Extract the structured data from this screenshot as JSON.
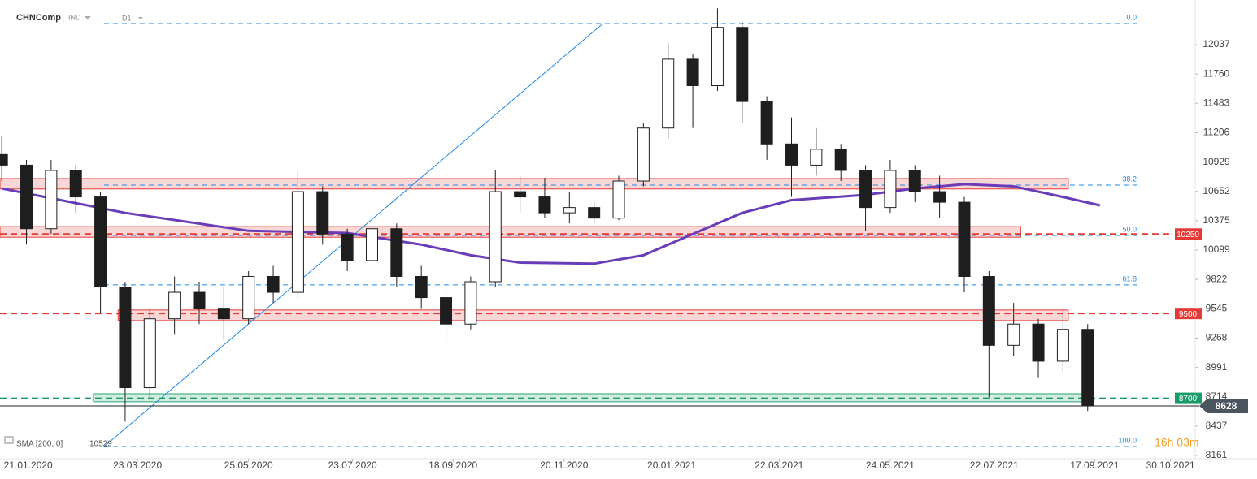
{
  "header": {
    "symbol": "CHNComp",
    "market": "IND",
    "interval": "D1"
  },
  "chart_data": {
    "type": "candlestick",
    "x": [
      "06.01.2020",
      "20.01.2020",
      "03.02.2020",
      "17.02.2020",
      "02.03.2020",
      "16.03.2020",
      "30.03.2020",
      "13.04.2020",
      "27.04.2020",
      "11.05.2020",
      "25.05.2020",
      "08.06.2020",
      "22.06.2020",
      "06.07.2020",
      "20.07.2020",
      "03.08.2020",
      "17.08.2020",
      "31.08.2020",
      "14.09.2020",
      "28.09.2020",
      "12.10.2020",
      "26.10.2020",
      "09.11.2020",
      "23.11.2020",
      "07.12.2020",
      "21.12.2020",
      "04.01.2021",
      "18.01.2021",
      "01.02.2021",
      "15.02.2021",
      "01.03.2021",
      "15.03.2021",
      "29.03.2021",
      "12.04.2021",
      "26.04.2021",
      "10.05.2021",
      "24.05.2021",
      "07.06.2021",
      "21.06.2021",
      "05.07.2021",
      "19.07.2021",
      "02.08.2021",
      "16.08.2021",
      "30.08.2021",
      "13.09.2021"
    ],
    "open": [
      11000,
      10900,
      10300,
      10850,
      10600,
      9750,
      8800,
      9450,
      9700,
      9550,
      9450,
      9850,
      9700,
      10650,
      10250,
      10000,
      10300,
      9850,
      9650,
      9400,
      9800,
      10650,
      10600,
      10450,
      10500,
      10400,
      10750,
      11250,
      11900,
      11650,
      12200,
      11500,
      11100,
      10900,
      11050,
      10850,
      10500,
      10850,
      10650,
      10550,
      9850,
      9200,
      9400,
      9050,
      9350
    ],
    "high": [
      11180,
      10950,
      10950,
      10900,
      10650,
      9800,
      9550,
      9850,
      9800,
      9750,
      9900,
      9950,
      10850,
      10700,
      10300,
      10420,
      10350,
      9950,
      9700,
      9850,
      10850,
      10800,
      10780,
      10650,
      10550,
      10800,
      11300,
      12050,
      11950,
      12380,
      12250,
      11550,
      11350,
      11250,
      11100,
      10900,
      10950,
      10900,
      10800,
      10600,
      9900,
      9600,
      9450,
      9550,
      9400
    ],
    "low": [
      10750,
      10150,
      10250,
      10450,
      9500,
      8480,
      8700,
      9300,
      9400,
      9250,
      9400,
      9600,
      9650,
      10150,
      9900,
      9950,
      9750,
      9550,
      9220,
      9350,
      9750,
      10450,
      10400,
      10350,
      10350,
      10380,
      10700,
      11150,
      11250,
      11600,
      11300,
      10950,
      10600,
      10800,
      10750,
      10280,
      10450,
      10550,
      10400,
      9700,
      8710,
      9100,
      8900,
      8950,
      8580
    ],
    "close": [
      10900,
      10300,
      10850,
      10600,
      9750,
      8800,
      9450,
      9700,
      9550,
      9450,
      9850,
      9700,
      10650,
      10250,
      10000,
      10300,
      9850,
      9650,
      9400,
      9800,
      10650,
      10600,
      10450,
      10500,
      10400,
      10750,
      11250,
      11900,
      11650,
      12200,
      11500,
      11100,
      10900,
      11050,
      10850,
      10500,
      10850,
      10650,
      10550,
      9850,
      9200,
      9400,
      9050,
      9350,
      8628
    ],
    "up_color": "#ffffff",
    "down_color": "#1e1e1e",
    "xlim": [
      "05.01.2020",
      "13.11.2021"
    ],
    "xticks": [
      "21.01.2020",
      "23.03.2020",
      "25.05.2020",
      "23.07.2020",
      "18.09.2020",
      "20.11.2020",
      "20.01.2021",
      "22.03.2021",
      "24.05.2021",
      "22.07.2021",
      "17.09.2021",
      "30.10.2021"
    ],
    "ylim": [
      8130,
      12397
    ],
    "yticks": [
      12037,
      11760,
      11483,
      11206,
      10929,
      10652,
      10375,
      10099,
      9822,
      9545,
      9268,
      8991,
      8714,
      8437,
      8161
    ],
    "sma": {
      "name": "SMA [200, 0]",
      "last": 10529,
      "color": "#6a3db8",
      "x": [
        "06.01.2020",
        "16.03.2020",
        "25.05.2020",
        "20.07.2020",
        "31.08.2020",
        "28.09.2020",
        "26.10.2020",
        "07.12.2020",
        "04.01.2021",
        "01.02.2021",
        "01.03.2021",
        "29.03.2021",
        "10.05.2021",
        "07.06.2021",
        "05.07.2021",
        "02.08.2021",
        "30.08.2021",
        "20.09.2021"
      ],
      "values": [
        10680,
        10450,
        10280,
        10260,
        10150,
        10050,
        9980,
        9970,
        10050,
        10250,
        10450,
        10570,
        10620,
        10680,
        10720,
        10700,
        10600,
        10520
      ]
    },
    "zones": [
      {
        "from": 10675,
        "to": 10773,
        "start": "05.01.2020",
        "end": "02.09.2021",
        "color": "#e53935"
      },
      {
        "from": 10220,
        "to": 10320,
        "start": "05.01.2020",
        "end": "06.08.2021",
        "color": "#e53935"
      },
      {
        "from": 9433,
        "to": 9533,
        "start": "12.03.2020",
        "end": "02.09.2021",
        "color": "#e53935"
      },
      {
        "from": 8667,
        "to": 8743,
        "start": "27.02.2020",
        "end": "16.09.2021",
        "color": "#26a672"
      }
    ],
    "levels": [
      {
        "value": 10250,
        "color": "#e53935"
      },
      {
        "value": 9500,
        "color": "#e53935"
      },
      {
        "value": 8700,
        "color": "#1a9c6a"
      }
    ],
    "fibonacci": {
      "color": "#1e88e5",
      "start": "04.03.2020",
      "levels": [
        {
          "value": 12236,
          "label": "0.0"
        },
        {
          "value": 10712,
          "label": "38.2"
        },
        {
          "value": 10237,
          "label": "50.0"
        },
        {
          "value": 9770,
          "label": "61.8"
        },
        {
          "value": 8245,
          "label": "100.0"
        }
      ]
    },
    "trendline": {
      "x": [
        "04.03.2020",
        "12.12.2020"
      ],
      "values": [
        8245,
        12236
      ],
      "color": "#1e88e5"
    },
    "last_price": 8628,
    "countdown": "16h 03m"
  }
}
